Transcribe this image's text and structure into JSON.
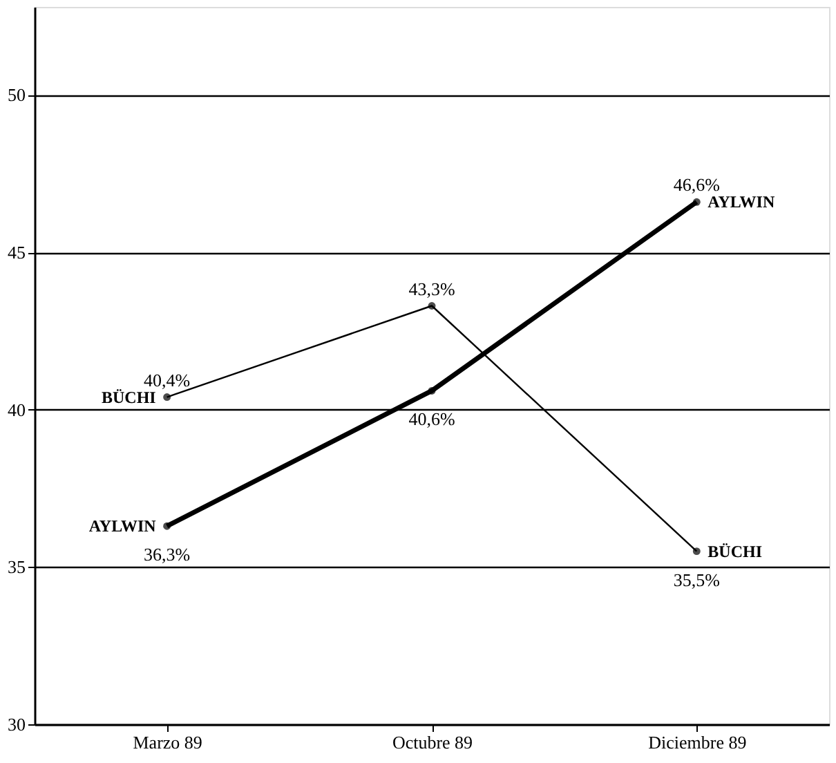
{
  "chart_data": {
    "type": "line",
    "categories": [
      "Marzo 89",
      "Octubre 89",
      "Diciembre 89"
    ],
    "series": [
      {
        "name": "AYLWIN",
        "color": "#000000",
        "values": [
          36.3,
          40.6,
          46.6
        ],
        "value_labels": [
          "36,3%",
          "40,6%",
          "46,6%"
        ]
      },
      {
        "name": "BÜCHI",
        "color": "#000000",
        "values": [
          40.4,
          43.3,
          35.5
        ],
        "value_labels": [
          "40,4%",
          "43,3%",
          "35,5%"
        ]
      }
    ],
    "ylim": [
      30,
      52.8
    ],
    "yticks": [
      30,
      35,
      40,
      45,
      50
    ],
    "grid": "y",
    "marker": "circle",
    "line_style": "solid"
  }
}
